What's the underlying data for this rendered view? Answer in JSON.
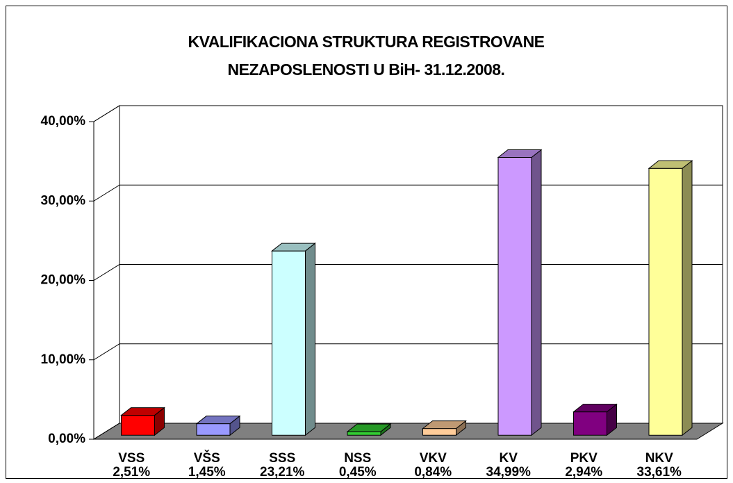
{
  "chart_data": {
    "type": "bar3d",
    "title": "KVALIFIKACIONA STRUKTURA REGISTROVANE NEZAPOSLENOSTI U BiH- 31.12.2008.",
    "categories": [
      "VSS",
      "VŠS",
      "SSS",
      "NSS",
      "VKV",
      "KV",
      "PKV",
      "NKV"
    ],
    "values": [
      2.51,
      1.45,
      23.21,
      0.45,
      0.84,
      34.99,
      2.94,
      33.61
    ],
    "value_labels": [
      "2,51%",
      "1,45%",
      "23,21%",
      "0,45%",
      "0,84%",
      "34,99%",
      "2,94%",
      "33,61%"
    ],
    "colors": [
      "#ff0000",
      "#9999ff",
      "#ccffff",
      "#33cc33",
      "#ffcc99",
      "#cc99ff",
      "#800080",
      "#ffff99"
    ],
    "ylim": [
      0,
      40
    ],
    "yticks": [
      {
        "value": 0,
        "label": "0,00%"
      },
      {
        "value": 10,
        "label": "10,00%"
      },
      {
        "value": 20,
        "label": "20,00%"
      },
      {
        "value": 30,
        "label": "30,00%"
      },
      {
        "value": 40,
        "label": "40,00%"
      }
    ],
    "grid": true
  }
}
